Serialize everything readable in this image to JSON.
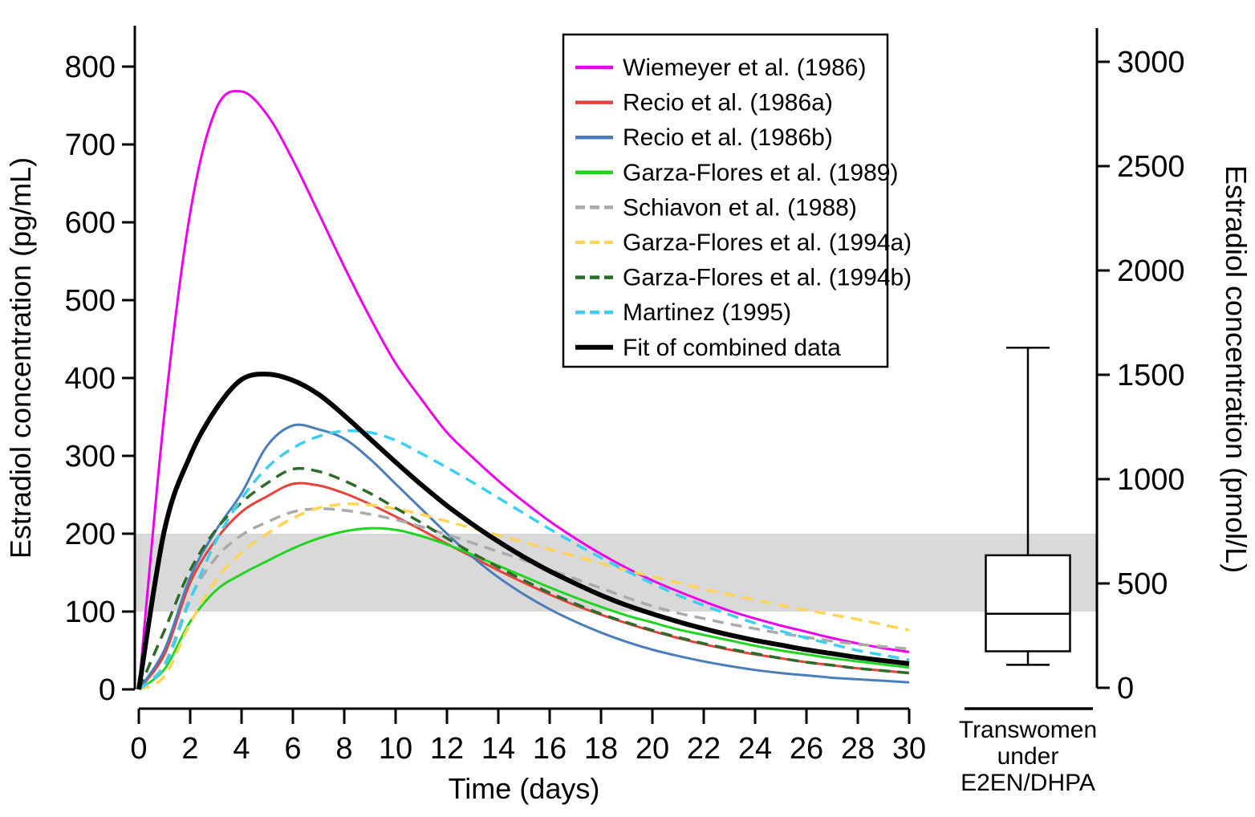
{
  "chart_data": {
    "type": "line",
    "description": "Estradiol concentration over time after injection, multiple study curves, with reference band and a box plot of transwomen under E2EN/DHPA",
    "x": [
      0,
      1,
      2,
      3,
      4,
      5,
      6,
      7,
      8,
      9,
      10,
      11,
      12,
      13,
      14,
      15,
      16,
      17,
      18,
      19,
      20,
      21,
      22,
      23,
      24,
      25,
      26,
      27,
      28,
      29,
      30
    ],
    "x_axis": {
      "title": "Time (days)",
      "ticks": [
        0,
        2,
        4,
        6,
        8,
        10,
        12,
        14,
        16,
        18,
        20,
        22,
        24,
        26,
        28,
        30
      ],
      "range": [
        0,
        30
      ]
    },
    "y_left": {
      "title": "Estradiol concentration (pg/mL)",
      "ticks": [
        0,
        100,
        200,
        300,
        400,
        500,
        600,
        700,
        800
      ],
      "range": [
        0,
        852
      ]
    },
    "y_right": {
      "title": "Estradiol concentration (pmol/L)",
      "ticks": [
        0,
        500,
        1000,
        1500,
        2000,
        2500,
        3000
      ],
      "range": [
        0,
        3170
      ]
    },
    "reference_band": {
      "from": 100,
      "to": 200,
      "units": "pg/mL",
      "color": "#d9d9d9"
    },
    "series": [
      {
        "name": "Wiemeyer et al. (1986)",
        "color": "#ee00ee",
        "style": "solid",
        "width": 3,
        "values": [
          0,
          355,
          612,
          745,
          768,
          738,
          680,
          612,
          543,
          478,
          419,
          373,
          330,
          298,
          268,
          241,
          216,
          194,
          174,
          156,
          140,
          126,
          113,
          101,
          91,
          82,
          74,
          66,
          59,
          53,
          48
        ]
      },
      {
        "name": "Recio et al. (1986a)",
        "color": "#e8423a",
        "style": "solid",
        "width": 3,
        "values": [
          0,
          45,
          137,
          192,
          228,
          248,
          264,
          262,
          252,
          238,
          222,
          205,
          187,
          170,
          153,
          137,
          122,
          108,
          96,
          85,
          75,
          66,
          58,
          51,
          45,
          40,
          35,
          31,
          27,
          24,
          21
        ]
      },
      {
        "name": "Recio et al. (1986b)",
        "color": "#4a7ebb",
        "style": "solid",
        "width": 3,
        "values": [
          0,
          51,
          144,
          204,
          252,
          313,
          339,
          334,
          322,
          296,
          264,
          232,
          200,
          170,
          144,
          122,
          103,
          87,
          73,
          61,
          51,
          43,
          36,
          30,
          25,
          21,
          18,
          15,
          13,
          11,
          9
        ]
      },
      {
        "name": "Garza-Flores et al. (1989)",
        "color": "#1fd51f",
        "style": "solid",
        "width": 3,
        "values": [
          0,
          26,
          87,
          127,
          148,
          165,
          181,
          194,
          203,
          207,
          205,
          197,
          186,
          173,
          159,
          145,
          131,
          118,
          106,
          95,
          86,
          77,
          70,
          63,
          56,
          50,
          45,
          40,
          36,
          32,
          28
        ]
      },
      {
        "name": "Schiavon et al. (1988)",
        "color": "#aaaaaa",
        "style": "dashed",
        "width": 3.5,
        "values": [
          0,
          32,
          117,
          169,
          198,
          215,
          228,
          232,
          230,
          225,
          218,
          209,
          199,
          188,
          177,
          166,
          154,
          142,
          130,
          118,
          107,
          98,
          91,
          84,
          78,
          72,
          67,
          62,
          58,
          55,
          52
        ]
      },
      {
        "name": "Garza-Flores et al. (1994a)",
        "color": "#ffd457",
        "style": "dashed",
        "width": 3.5,
        "values": [
          0,
          17,
          85,
          140,
          176,
          200,
          220,
          233,
          238,
          237,
          232,
          225,
          216,
          207,
          198,
          189,
          180,
          171,
          162,
          153,
          145,
          137,
          129,
          122,
          115,
          108,
          102,
          96,
          90,
          83,
          76
        ]
      },
      {
        "name": "Garza-Flores et al. (1994b)",
        "color": "#2d6b2d",
        "style": "dashed",
        "width": 3.5,
        "values": [
          0,
          76,
          153,
          205,
          240,
          265,
          283,
          280,
          268,
          252,
          233,
          214,
          194,
          175,
          157,
          140,
          124,
          110,
          97,
          86,
          76,
          67,
          59,
          52,
          46,
          40,
          35,
          31,
          27,
          24,
          21
        ]
      },
      {
        "name": "Martinez (1995)",
        "color": "#3dcff2",
        "style": "dashed",
        "width": 3.5,
        "values": [
          0,
          30,
          115,
          190,
          245,
          285,
          310,
          325,
          332,
          330,
          320,
          303,
          285,
          266,
          246,
          226,
          206,
          187,
          169,
          152,
          136,
          121,
          108,
          96,
          85,
          75,
          66,
          58,
          50,
          44,
          38
        ]
      },
      {
        "name": "Fit of combined data",
        "color": "#000000",
        "style": "solid",
        "width": 6,
        "values": [
          0,
          205,
          300,
          360,
          398,
          405,
          397,
          379,
          352,
          322,
          292,
          263,
          236,
          212,
          190,
          170,
          152,
          136,
          121,
          108,
          97,
          87,
          78,
          70,
          63,
          57,
          51,
          46,
          41,
          37,
          33
        ]
      }
    ],
    "legend_position": "top-center",
    "grid": false,
    "boxplot": {
      "category_label_lines": [
        "Transwomen",
        "under",
        "E2EN/DHPA"
      ],
      "units": "pmol/L",
      "whisker_low": 110,
      "q1": 175,
      "median": 355,
      "q3": 635,
      "whisker_high": 1630
    }
  }
}
